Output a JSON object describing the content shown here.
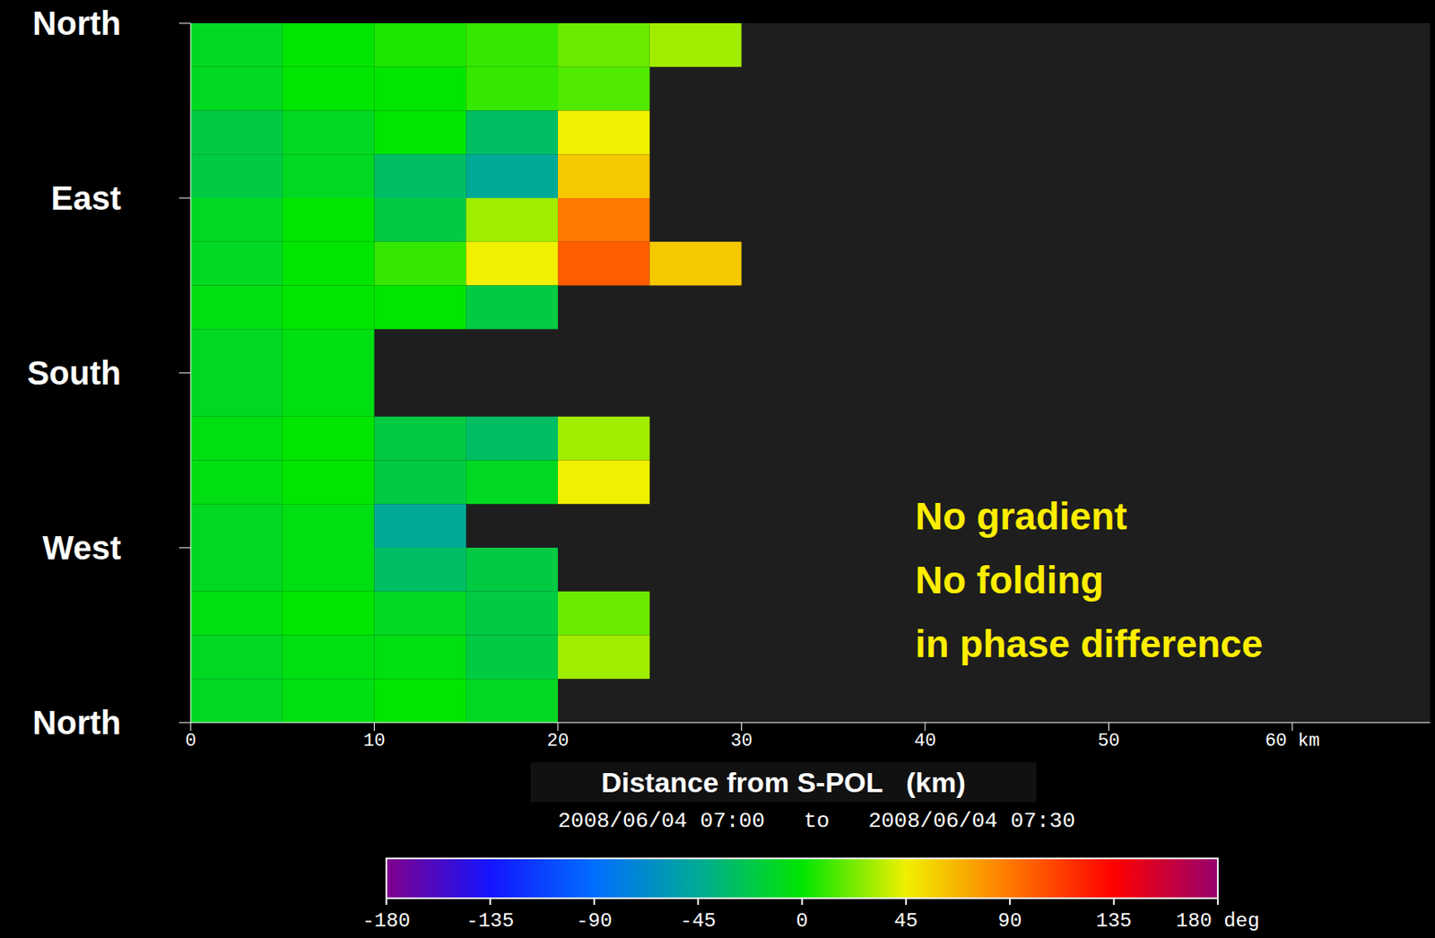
{
  "chart_data": {
    "type": "heatmap",
    "xlabel": "Distance from S-POL   (km)",
    "subtitle": "2008/06/04 07:00   to   2008/06/04 07:30",
    "annotation": [
      "No gradient",
      "No folding",
      "in phase difference"
    ],
    "xlim": [
      0,
      67.5
    ],
    "xticks": [
      0,
      10,
      20,
      30,
      40,
      50,
      {
        "value": 60,
        "label": "60 km"
      }
    ],
    "ylim": [
      0,
      360
    ],
    "yticks": [
      {
        "value": 0,
        "label": "North"
      },
      {
        "value": 90,
        "label": "East"
      },
      {
        "value": 180,
        "label": "South"
      },
      {
        "value": 270,
        "label": "West"
      },
      {
        "value": 360,
        "label": "North"
      }
    ],
    "x_edges": [
      0,
      5,
      10,
      15,
      20,
      25,
      30,
      35,
      40,
      45,
      50,
      55,
      60,
      65,
      67.5
    ],
    "y_edges": [
      0,
      22.5,
      45,
      67.5,
      90,
      112.5,
      135,
      157.5,
      180,
      202.5,
      225,
      247.5,
      270,
      292.5,
      315,
      337.5,
      360
    ],
    "cells": [
      [
        -10,
        0,
        5,
        10,
        20,
        30,
        null,
        null,
        null,
        null,
        null,
        null,
        null,
        null
      ],
      [
        -10,
        0,
        0,
        10,
        15,
        null,
        null,
        null,
        null,
        null,
        null,
        null,
        null,
        null
      ],
      [
        -20,
        -10,
        0,
        -30,
        45,
        null,
        null,
        null,
        null,
        null,
        null,
        null,
        null,
        null
      ],
      [
        -20,
        -10,
        -30,
        -45,
        60,
        null,
        null,
        null,
        null,
        null,
        null,
        null,
        null,
        null
      ],
      [
        -10,
        0,
        -20,
        30,
        90,
        null,
        null,
        null,
        null,
        null,
        null,
        null,
        null,
        null
      ],
      [
        -10,
        0,
        10,
        45,
        100,
        60,
        null,
        null,
        null,
        null,
        null,
        null,
        null,
        null
      ],
      [
        -5,
        0,
        0,
        -20,
        null,
        null,
        null,
        null,
        null,
        null,
        null,
        null,
        null,
        null
      ],
      [
        -10,
        -5,
        null,
        null,
        null,
        null,
        null,
        null,
        null,
        null,
        null,
        null,
        null,
        null
      ],
      [
        -10,
        -5,
        null,
        null,
        null,
        null,
        null,
        null,
        null,
        null,
        null,
        null,
        null,
        null
      ],
      [
        -5,
        0,
        -20,
        -30,
        30,
        null,
        null,
        null,
        null,
        null,
        null,
        null,
        null,
        null
      ],
      [
        -5,
        0,
        -20,
        -10,
        45,
        null,
        null,
        null,
        null,
        null,
        null,
        null,
        null,
        null
      ],
      [
        -10,
        -5,
        -45,
        null,
        null,
        null,
        null,
        null,
        null,
        null,
        null,
        null,
        null,
        null
      ],
      [
        -10,
        -5,
        -30,
        -20,
        null,
        null,
        null,
        null,
        null,
        null,
        null,
        null,
        null,
        null
      ],
      [
        -5,
        0,
        -10,
        -20,
        20,
        null,
        null,
        null,
        null,
        null,
        null,
        null,
        null,
        null
      ],
      [
        -10,
        -5,
        -5,
        -20,
        30,
        null,
        null,
        null,
        null,
        null,
        null,
        null,
        null,
        null
      ],
      [
        -10,
        -5,
        0,
        -10,
        null,
        null,
        null,
        null,
        null,
        null,
        null,
        null,
        null,
        null
      ]
    ],
    "colorbar": {
      "range": [
        -180,
        180
      ],
      "ticks": [
        -180,
        -135,
        -90,
        -45,
        0,
        45,
        90,
        135,
        {
          "value": 180,
          "label": "180 deg"
        }
      ]
    }
  }
}
